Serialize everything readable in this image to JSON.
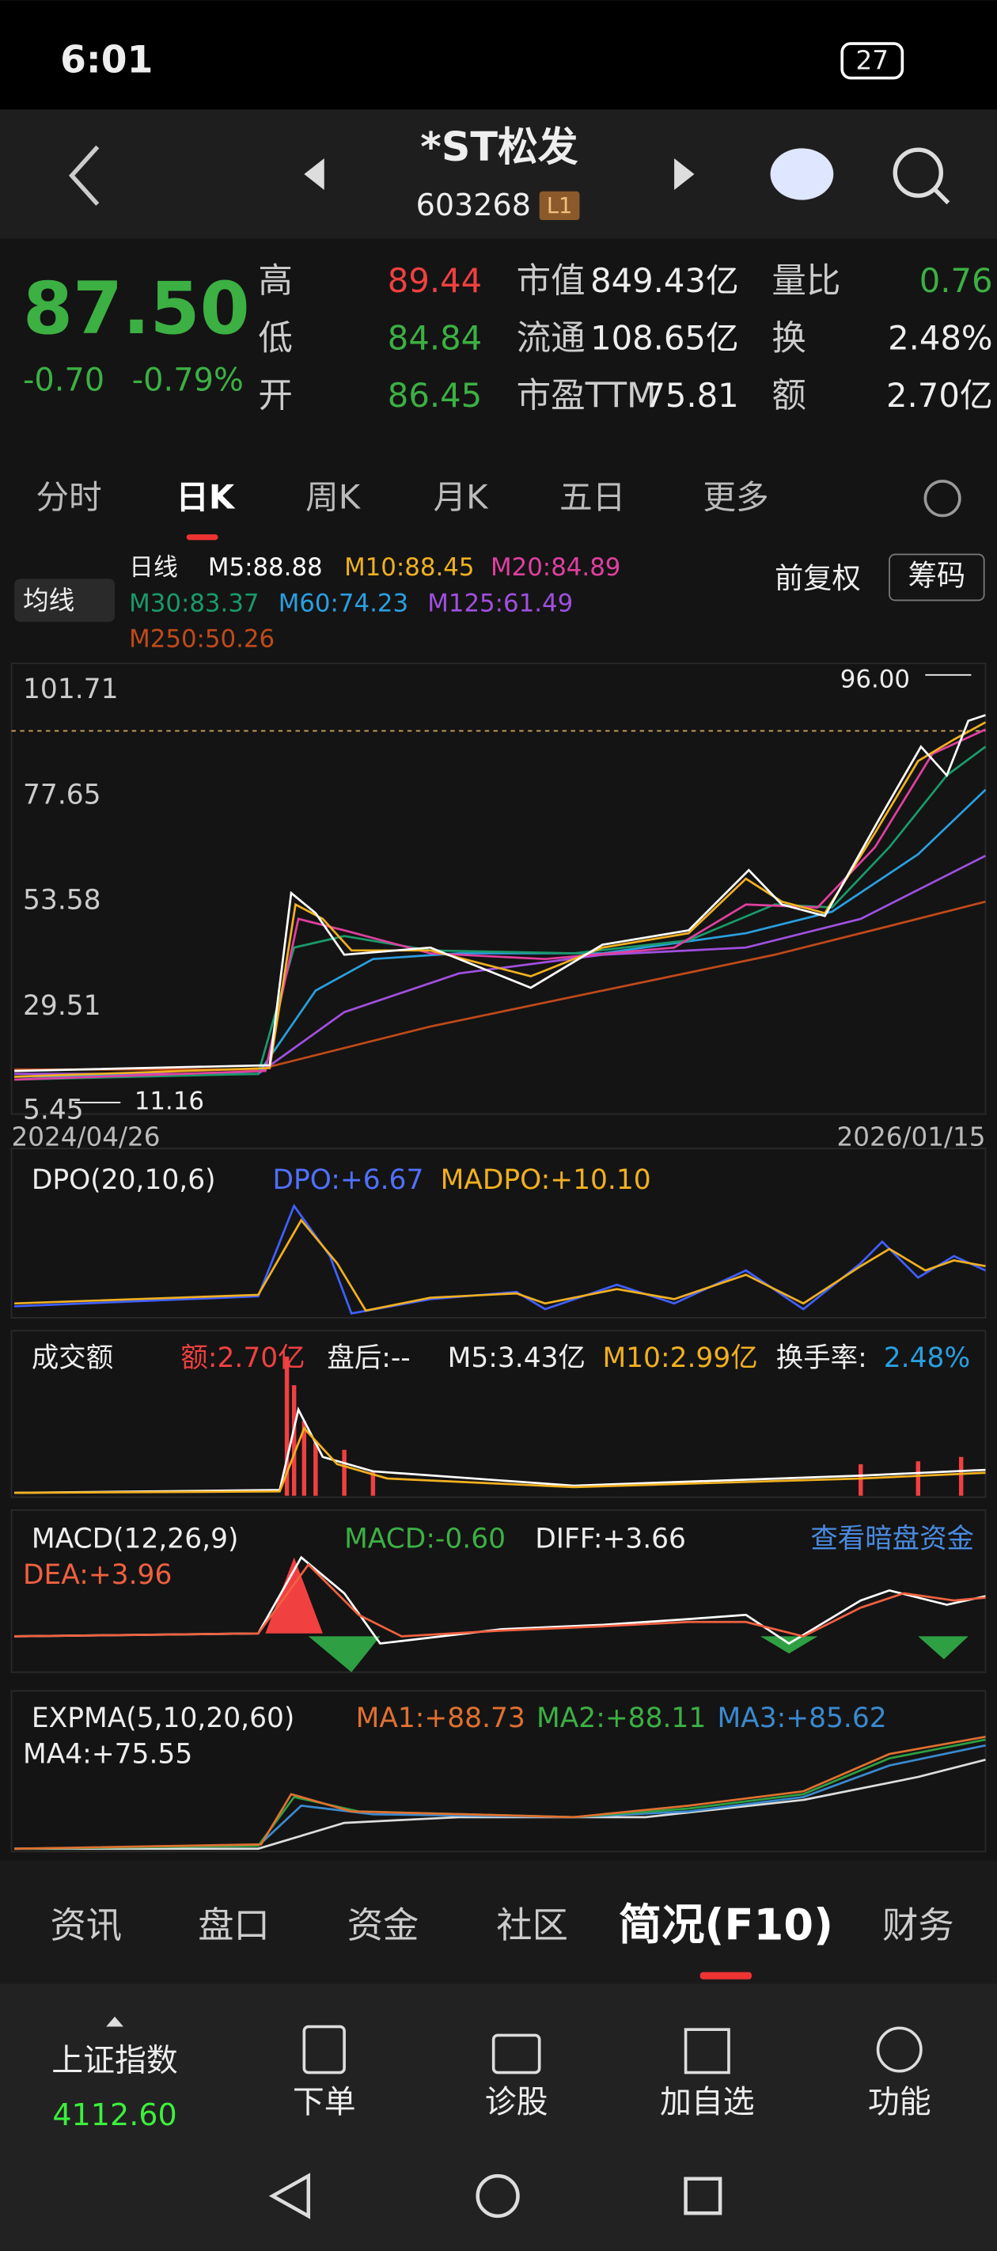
{
  "status_bar": {
    "time": "6:01",
    "battery": "27"
  },
  "header": {
    "title": "*ST松发",
    "code": "603268",
    "badge": "L1"
  },
  "quote": {
    "price": "87.50",
    "change": "-0.70",
    "change_pct": "-0.79%",
    "fields": [
      {
        "label": "高",
        "value": "89.44"
      },
      {
        "label": "低",
        "value": "84.84"
      },
      {
        "label": "开",
        "value": "86.45"
      },
      {
        "label": "市值",
        "value": "849.43亿"
      },
      {
        "label": "流通",
        "value": "108.65亿"
      },
      {
        "label": "市盈TTM",
        "value": "75.81"
      },
      {
        "label": "量比",
        "value": "0.76"
      },
      {
        "label": "换",
        "value": "2.48%"
      },
      {
        "label": "额",
        "value": "2.70亿"
      }
    ]
  },
  "tabs": [
    "分时",
    "日K",
    "周K",
    "月K",
    "五日",
    "更多"
  ],
  "ma_legend": {
    "selector": "均线",
    "period": "日线",
    "items": [
      "M5:88.88",
      "M10:88.45",
      "M20:84.89",
      "M30:83.37",
      "M60:74.23",
      "M125:61.49",
      "M250:50.26"
    ],
    "adjust": "前复权",
    "chips": "筹码"
  },
  "price_chart": {
    "axis": [
      "101.71",
      "77.65",
      "53.58",
      "29.51",
      "5.45"
    ],
    "high_mark": "96.00",
    "low_mark": "11.16",
    "start_date": "2024/04/26",
    "end_date": "2026/01/15"
  },
  "dpo": {
    "name": "DPO(20,10,6)",
    "dpo": "DPO:+6.67",
    "madpo": "MADPO:+10.10"
  },
  "volume": {
    "name": "成交额",
    "amount": "额:2.70亿",
    "after": "盘后:--",
    "m5": "M5:3.43亿",
    "m10": "M10:2.99亿",
    "turnover_label": "换手率:",
    "turnover": "2.48%"
  },
  "macd": {
    "name": "MACD(12,26,9)",
    "macd": "MACD:-0.60",
    "diff": "DIFF:+3.66",
    "dea": "DEA:+3.96",
    "link": "查看暗盘资金"
  },
  "expma": {
    "name": "EXPMA(5,10,20,60)",
    "ma1": "MA1:+88.73",
    "ma2": "MA2:+88.11",
    "ma3": "MA3:+85.62",
    "ma4": "MA4:+75.55"
  },
  "bottom_tabs": [
    "资讯",
    "盘口",
    "资金",
    "社区",
    "简况(F10)",
    "财务"
  ],
  "footer": {
    "index_name": "上证指数",
    "index_value": "4112.60",
    "buttons": [
      "下单",
      "诊股",
      "加自选",
      "功能"
    ]
  }
}
